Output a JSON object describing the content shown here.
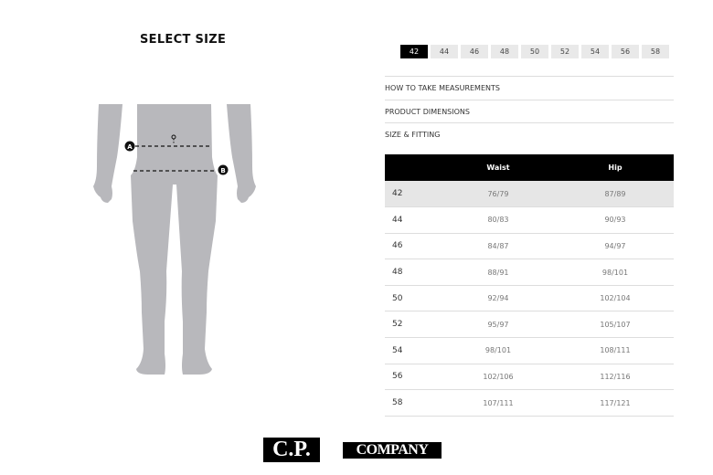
{
  "title": "SELECT SIZE",
  "sizes": [
    "42",
    "44",
    "46",
    "48",
    "50",
    "52",
    "54",
    "56",
    "58"
  ],
  "selected_size": "42",
  "accordion": [
    "HOW TO TAKE MEASUREMENTS",
    "PRODUCT DIMENSIONS",
    "SIZE & FITTING"
  ],
  "table": {
    "headers": [
      "",
      "Waist",
      "Hip"
    ],
    "rows": [
      [
        "42",
        "76/79",
        "87/89"
      ],
      [
        "44",
        "80/83",
        "90/93"
      ],
      [
        "46",
        "84/87",
        "94/97"
      ],
      [
        "48",
        "88/91",
        "98/101"
      ],
      [
        "50",
        "92/94",
        "102/104"
      ],
      [
        "52",
        "95/97",
        "105/107"
      ],
      [
        "54",
        "98/101",
        "108/111"
      ],
      [
        "56",
        "102/106",
        "112/116"
      ],
      [
        "58",
        "107/111",
        "117/121"
      ]
    ]
  },
  "figure": {
    "marker_a": "A",
    "marker_b": "B"
  },
  "logo": {
    "left": "C.P.",
    "right": "COMPANY"
  },
  "colors": {
    "selected": "#000000",
    "unselected": "#e9e9e9",
    "silhouette": "#b8b8bc"
  }
}
